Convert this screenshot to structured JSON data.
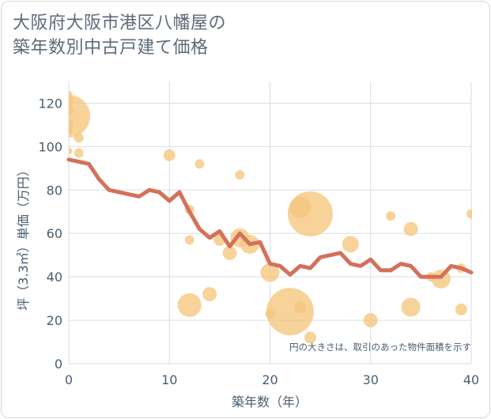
{
  "title_lines": [
    "大阪府大阪市港区八幡屋の",
    "築年数別中古戸建て価格"
  ],
  "chart_data": {
    "type": "scatter",
    "xlabel": "築年数（年）",
    "ylabel": "坪（3.3㎡）単価（万円）",
    "xlim": [
      0,
      40
    ],
    "ylim": [
      0,
      130
    ],
    "xticks": [
      0,
      10,
      20,
      30,
      40
    ],
    "yticks": [
      0,
      20,
      40,
      60,
      80,
      100,
      120
    ],
    "grid": true,
    "note": "円の大きさは、取引のあった物件面積を示す",
    "colors": {
      "bubble": "#f5c77e",
      "line": "#d4715a",
      "grid": "#d5dee6",
      "axis_text": "#4a5d6f"
    },
    "bubbles": [
      {
        "x": 0,
        "y": 124,
        "s": 3
      },
      {
        "x": 0,
        "y": 121,
        "s": 4
      },
      {
        "x": 0,
        "y": 117,
        "s": 4
      },
      {
        "x": 0,
        "y": 114,
        "s": 18
      },
      {
        "x": 0,
        "y": 110,
        "s": 4
      },
      {
        "x": 0,
        "y": 107,
        "s": 3
      },
      {
        "x": 1,
        "y": 104,
        "s": 4
      },
      {
        "x": 0,
        "y": 98,
        "s": 3
      },
      {
        "x": 1,
        "y": 97,
        "s": 4
      },
      {
        "x": 10,
        "y": 96,
        "s": 5
      },
      {
        "x": 13,
        "y": 92,
        "s": 4
      },
      {
        "x": 17,
        "y": 87,
        "s": 4
      },
      {
        "x": 12,
        "y": 71,
        "s": 4
      },
      {
        "x": 12,
        "y": 57,
        "s": 4
      },
      {
        "x": 15,
        "y": 57,
        "s": 5
      },
      {
        "x": 16,
        "y": 51,
        "s": 6
      },
      {
        "x": 17,
        "y": 58,
        "s": 8
      },
      {
        "x": 18,
        "y": 55,
        "s": 8
      },
      {
        "x": 12,
        "y": 27,
        "s": 10
      },
      {
        "x": 14,
        "y": 32,
        "s": 6
      },
      {
        "x": 20,
        "y": 42,
        "s": 8
      },
      {
        "x": 20,
        "y": 23,
        "s": 4
      },
      {
        "x": 22,
        "y": 24,
        "s": 20
      },
      {
        "x": 23,
        "y": 72,
        "s": 9
      },
      {
        "x": 24,
        "y": 69,
        "s": 19
      },
      {
        "x": 23,
        "y": 26,
        "s": 5
      },
      {
        "x": 24,
        "y": 12,
        "s": 5
      },
      {
        "x": 28,
        "y": 55,
        "s": 7
      },
      {
        "x": 30,
        "y": 20,
        "s": 6
      },
      {
        "x": 32,
        "y": 68,
        "s": 4
      },
      {
        "x": 34,
        "y": 62,
        "s": 6
      },
      {
        "x": 34,
        "y": 26,
        "s": 8
      },
      {
        "x": 36,
        "y": 40,
        "s": 4
      },
      {
        "x": 37,
        "y": 39,
        "s": 8
      },
      {
        "x": 39,
        "y": 44,
        "s": 4
      },
      {
        "x": 39,
        "y": 25,
        "s": 5
      },
      {
        "x": 40,
        "y": 69,
        "s": 4
      }
    ],
    "line": {
      "x": [
        0,
        1,
        2,
        3,
        4,
        5,
        6,
        7,
        8,
        9,
        10,
        11,
        12,
        13,
        14,
        15,
        16,
        17,
        18,
        19,
        20,
        21,
        22,
        23,
        24,
        25,
        26,
        27,
        28,
        29,
        30,
        31,
        32,
        33,
        34,
        35,
        36,
        37,
        38,
        39,
        40
      ],
      "y": [
        94,
        93,
        92,
        85,
        80,
        79,
        78,
        77,
        80,
        79,
        75,
        79,
        70,
        62,
        58,
        61,
        54,
        60,
        55,
        56,
        46,
        45,
        41,
        45,
        44,
        49,
        50,
        51,
        46,
        45,
        48,
        43,
        43,
        46,
        45,
        40,
        40,
        40,
        45,
        44,
        42
      ]
    }
  }
}
